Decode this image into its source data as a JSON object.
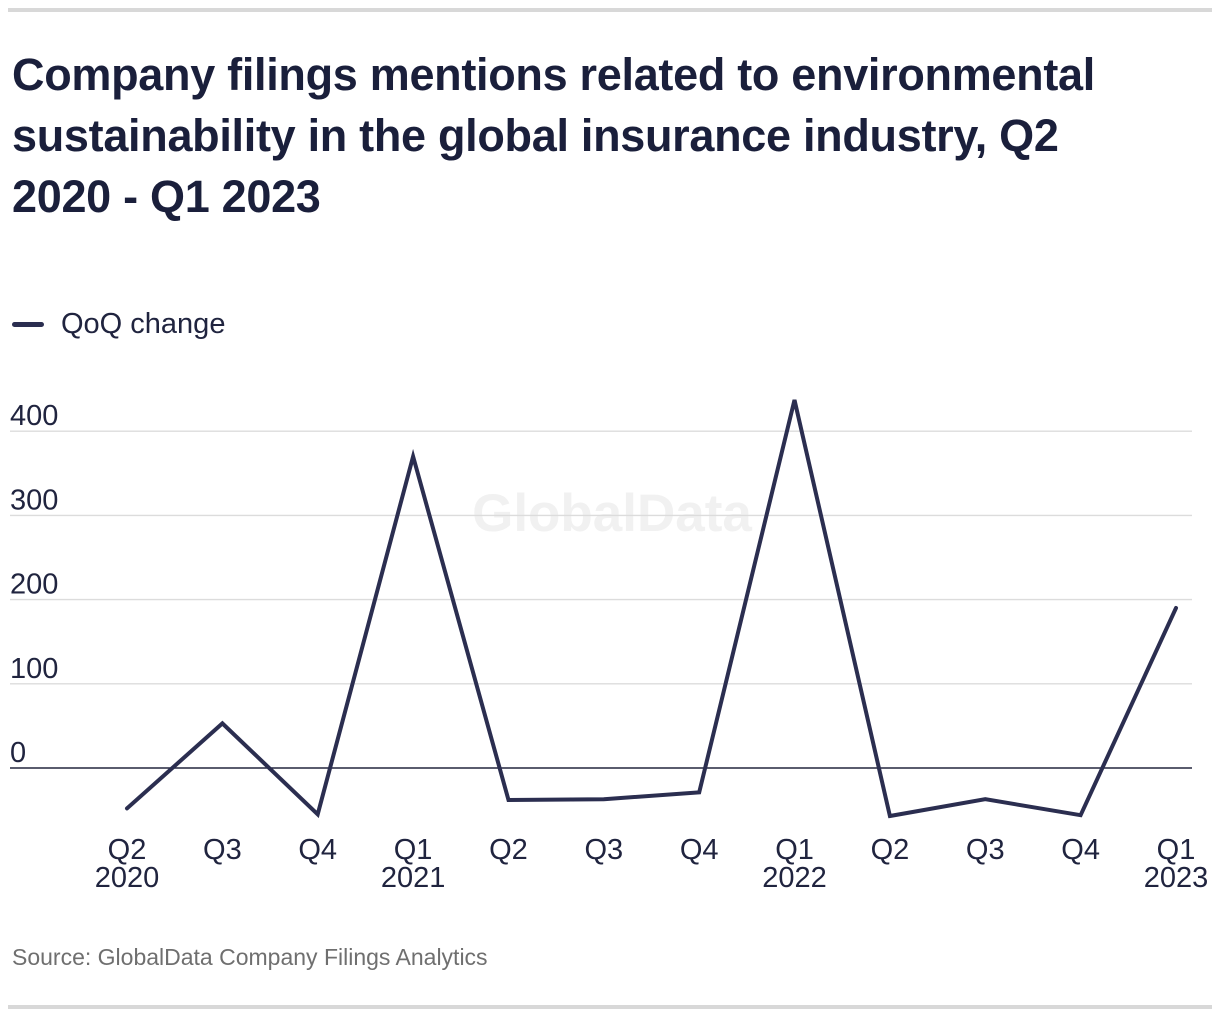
{
  "page": {
    "source": "Source: GlobalData Company Filings Analytics",
    "watermark": "GlobalData"
  },
  "chart_data": {
    "type": "line",
    "title": "Company filings mentions related to environmental sustainability in the global insurance industry, Q2 2020 - Q1 2023",
    "title_lines": [
      "Company filings mentions related to environmental",
      "sustainability in the global insurance industry, Q2",
      "2020 - Q1 2023"
    ],
    "legend_position": "top-left",
    "grid": "horizontal",
    "ylim": [
      -75,
      450
    ],
    "yticks": [
      0,
      100,
      200,
      300,
      400
    ],
    "categories": [
      "Q2 2020",
      "Q3 2020",
      "Q4 2020",
      "Q1 2021",
      "Q2 2021",
      "Q3 2021",
      "Q4 2021",
      "Q1 2022",
      "Q2 2022",
      "Q3 2022",
      "Q4 2022",
      "Q1 2023"
    ],
    "x_tick_labels": [
      {
        "quarter": "Q2",
        "year": "2020"
      },
      {
        "quarter": "Q3"
      },
      {
        "quarter": "Q4"
      },
      {
        "quarter": "Q1",
        "year": "2021"
      },
      {
        "quarter": "Q2"
      },
      {
        "quarter": "Q3"
      },
      {
        "quarter": "Q4"
      },
      {
        "quarter": "Q1",
        "year": "2022"
      },
      {
        "quarter": "Q2"
      },
      {
        "quarter": "Q3"
      },
      {
        "quarter": "Q4"
      },
      {
        "quarter": "Q1",
        "year": "2023"
      }
    ],
    "series": [
      {
        "name": "QoQ change",
        "values": [
          -48,
          53,
          -55,
          370,
          -38,
          -37,
          -29,
          437,
          -57,
          -37,
          -56,
          190
        ]
      }
    ],
    "colors": {
      "line": "#2b2e50",
      "zero_line": "#23263f",
      "grid": "#dcdcdc",
      "axis_text": "#20243f",
      "watermark": "#f1f1f1"
    }
  }
}
